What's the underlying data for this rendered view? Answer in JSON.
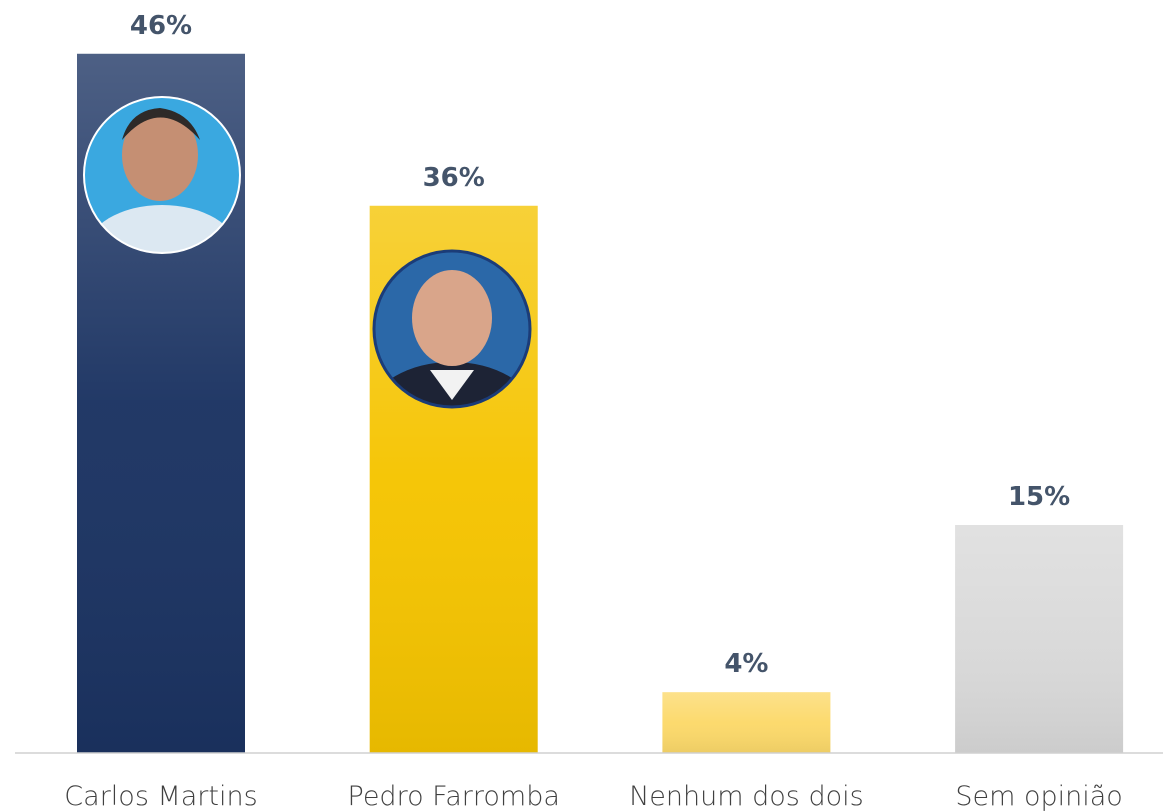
{
  "chart_data": {
    "type": "bar",
    "categories": [
      "Carlos Martins",
      "Pedro Farromba",
      "Nenhum dos dois",
      "Sem opinião"
    ],
    "values": [
      46,
      36,
      4,
      15
    ],
    "value_labels": [
      "46%",
      "36%",
      "4%",
      "15%"
    ],
    "colors": [
      "#1b3362",
      "#f5c400",
      "#fcd96a",
      "#d9d9d9"
    ]
  }
}
